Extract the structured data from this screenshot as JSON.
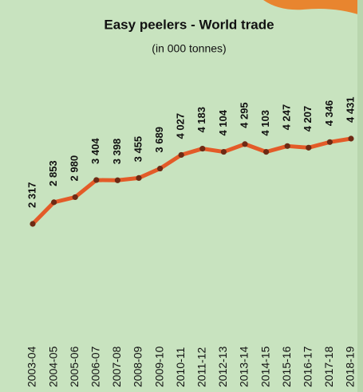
{
  "chart_data": {
    "type": "line",
    "title": "Easy peelers - World trade",
    "subtitle": "(in 000 tonnes)",
    "categories": [
      "2003-04",
      "2004-05",
      "2005-06",
      "2006-07",
      "2007-08",
      "2008-09",
      "2009-10",
      "2010-11",
      "2011-12",
      "2012-13",
      "2013-14",
      "2014-15",
      "2015-16",
      "2016-17",
      "2017-18",
      "2018-19"
    ],
    "values": [
      2317,
      2853,
      2980,
      3404,
      3398,
      3455,
      3689,
      4027,
      4183,
      4104,
      4295,
      4103,
      4247,
      4207,
      4346,
      4431
    ],
    "value_labels": [
      "2 317",
      "2 853",
      "2 980",
      "3 404",
      "3 398",
      "3 455",
      "3 689",
      "4 027",
      "4 183",
      "4 104",
      "4 295",
      "4 103",
      "4 247",
      "4 207",
      "4 346",
      "4 431"
    ],
    "color": "#e35b28",
    "marker_color": "#6e2a14"
  }
}
